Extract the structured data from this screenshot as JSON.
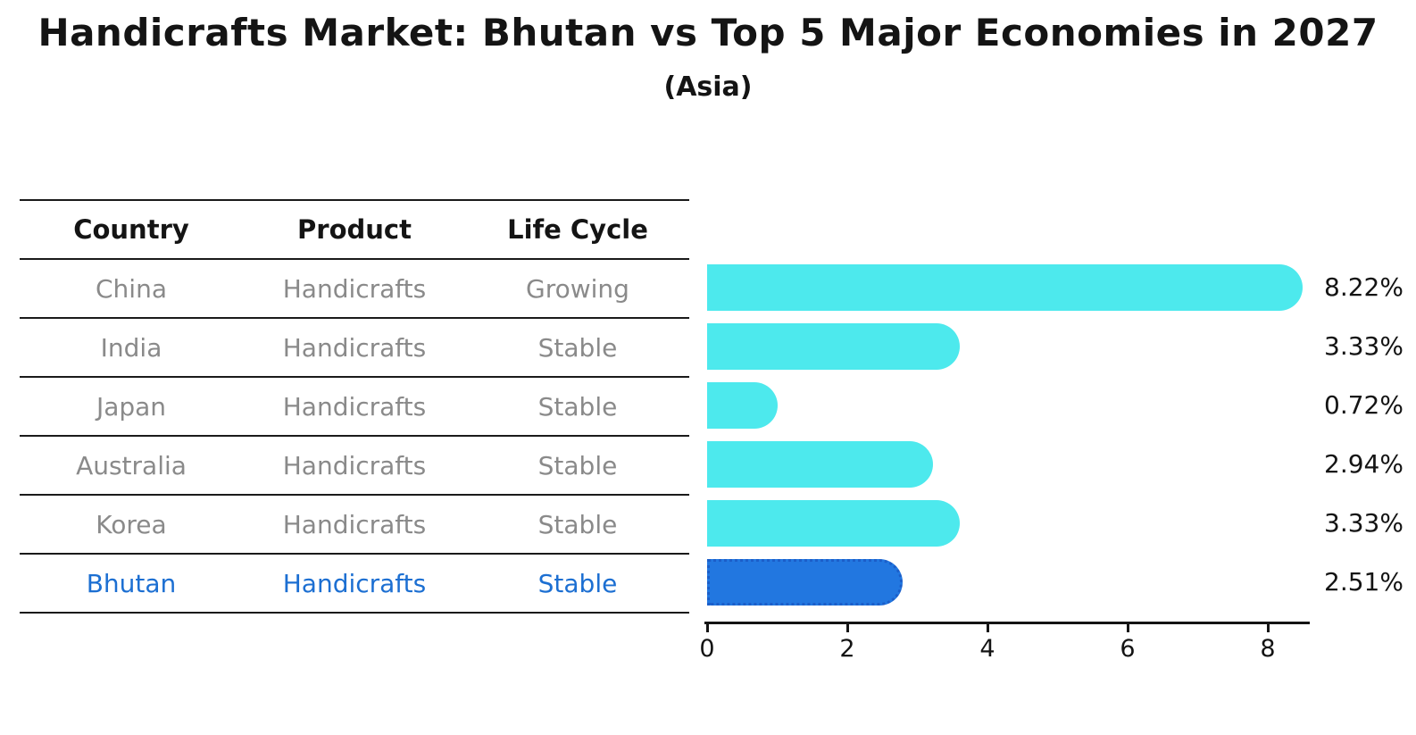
{
  "title": "Handicrafts Market: Bhutan vs Top 5 Major Economies in 2027",
  "subtitle": "(Asia)",
  "colors": {
    "bar_default": "#4de9ed",
    "bar_highlight": "#2277e0",
    "bar_highlight_border": "#1b5ec9",
    "highlight_text": "#1c6fd2",
    "row_text": "#8a8a8a",
    "heading_text": "#141414"
  },
  "table": {
    "headers": [
      "Country",
      "Product",
      "Life Cycle"
    ],
    "rows": [
      {
        "country": "China",
        "product": "Handicrafts",
        "life_cycle": "Growing",
        "highlighted": false
      },
      {
        "country": "India",
        "product": "Handicrafts",
        "life_cycle": "Stable",
        "highlighted": false
      },
      {
        "country": "Japan",
        "product": "Handicrafts",
        "life_cycle": "Stable",
        "highlighted": false
      },
      {
        "country": "Australia",
        "product": "Handicrafts",
        "life_cycle": "Stable",
        "highlighted": false
      },
      {
        "country": "Korea",
        "product": "Handicrafts",
        "life_cycle": "Stable",
        "highlighted": false
      },
      {
        "country": "Bhutan",
        "product": "Handicrafts",
        "life_cycle": "Stable",
        "highlighted": true
      }
    ]
  },
  "chart_data": {
    "type": "bar",
    "orientation": "horizontal",
    "title": "Handicrafts Market: Bhutan vs Top 5 Major Economies in 2027 (Asia)",
    "categories": [
      "China",
      "India",
      "Japan",
      "Australia",
      "Korea",
      "Bhutan"
    ],
    "values": [
      8.22,
      3.33,
      0.72,
      2.94,
      3.33,
      2.51
    ],
    "value_labels": [
      "8.22%",
      "3.33%",
      "0.72%",
      "2.94%",
      "3.33%",
      "2.51%"
    ],
    "highlight_category": "Bhutan",
    "xlabel": "",
    "ylabel": "",
    "xlim": [
      0,
      8.6
    ],
    "xticks": [
      0,
      2,
      4,
      6,
      8
    ],
    "grid": false,
    "legend": false
  }
}
